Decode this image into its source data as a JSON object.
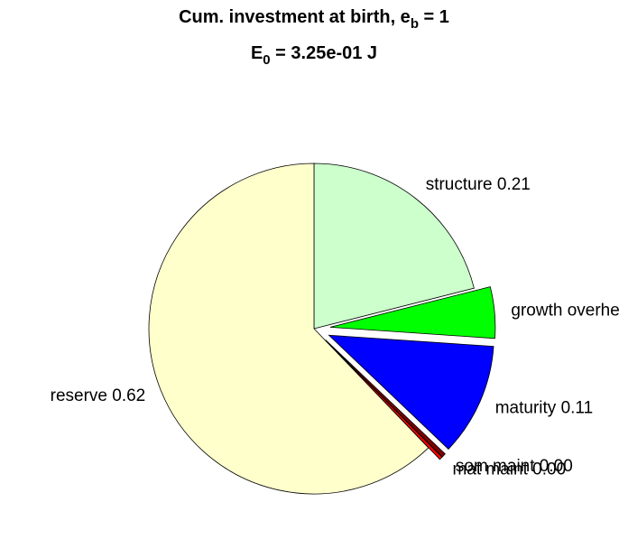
{
  "chart_data": {
    "type": "pie",
    "title_parts": [
      "Cum. investment at birth, e",
      "b",
      " = 1"
    ],
    "subtitle_parts": [
      "E",
      "0",
      " = 3.25e-01 J"
    ],
    "categories": [
      "structure",
      "growth overhead",
      "maturity",
      "som maint",
      "mat maint",
      "reserve"
    ],
    "values": [
      0.21,
      0.05,
      0.11,
      0.004,
      0.003,
      0.62
    ],
    "value_labels": [
      "structure 0.21",
      "growth overhe",
      "maturity 0.11",
      "som maint 0.00",
      "mat maint 0.00",
      "reserve 0.62"
    ],
    "colors": [
      "#ccffcc",
      "#00ff00",
      "#0000ff",
      "#800000",
      "#ff0000",
      "#ffffcc"
    ],
    "explode": [
      false,
      true,
      true,
      true,
      true,
      false
    ]
  }
}
